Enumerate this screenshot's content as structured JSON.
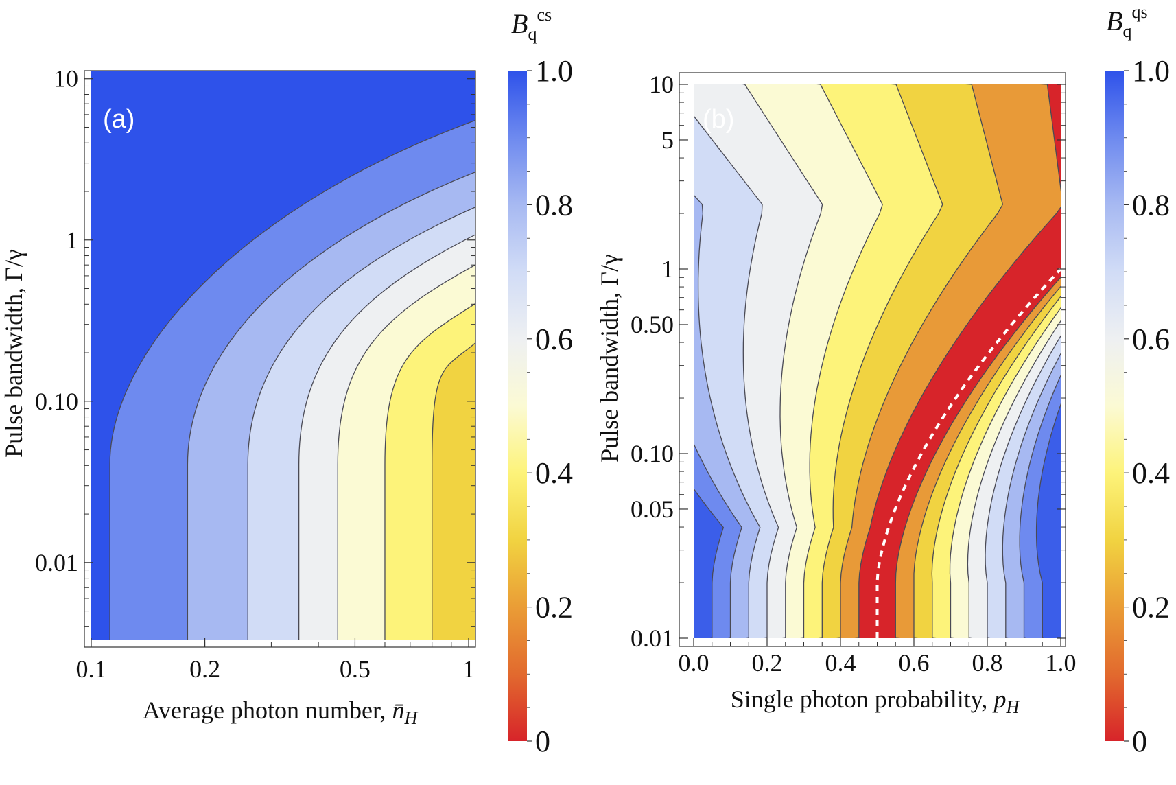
{
  "chart_data": [
    {
      "type": "heatmap",
      "subtype": "filled-contour",
      "panel_label": "(a)",
      "xlabel": "Average photon number, n̄H",
      "xlabel_main": "Average photon number,",
      "xlabel_var": "n̄",
      "xlabel_sub": "H",
      "ylabel": "Pulse bandwidth, Γ/γ",
      "x_scale": "log",
      "y_scale": "log",
      "xlim": [
        0.1,
        1
      ],
      "ylim": [
        0.0033,
        11
      ],
      "x_ticks": [
        {
          "value": 0.1,
          "label": "0.1"
        },
        {
          "value": 0.2,
          "label": "0.2"
        },
        {
          "value": 0.5,
          "label": "0.5"
        },
        {
          "value": 1,
          "label": "1"
        }
      ],
      "y_ticks": [
        {
          "value": 0.01,
          "label": "0.01"
        },
        {
          "value": 0.1,
          "label": "0.10"
        },
        {
          "value": 1,
          "label": "1"
        },
        {
          "value": 10,
          "label": "10"
        }
      ],
      "colorbar": {
        "title": "B",
        "title_sup": "cs",
        "title_sub": "q",
        "range": [
          0,
          1
        ],
        "ticks": [
          "0",
          "0.2",
          "0.4",
          "0.6",
          "0.8",
          "1.0"
        ]
      },
      "contour_step": 0.1,
      "contour_boundaries_at_low_bandwidth": [
        {
          "level": 0.9,
          "x": 0.112
        },
        {
          "level": 0.8,
          "x": 0.18
        },
        {
          "level": 0.7,
          "x": 0.26
        },
        {
          "level": 0.6,
          "x": 0.355
        },
        {
          "level": 0.5,
          "x": 0.45
        },
        {
          "level": 0.4,
          "x": 0.6
        },
        {
          "level": 0.3,
          "x": 0.8
        }
      ],
      "contour_boundaries_at_x_1": [
        {
          "level": 0.9,
          "y": 4.8
        },
        {
          "level": 0.8,
          "y": 2.3
        },
        {
          "level": 0.7,
          "y": 1.4
        },
        {
          "level": 0.6,
          "y": 0.95
        },
        {
          "level": 0.5,
          "y": 0.62
        },
        {
          "level": 0.4,
          "y": 0.36
        },
        {
          "level": 0.3,
          "y": 0.21
        }
      ],
      "min_value_region": "0.2–0.3 at n̄H ≈ 1, low bandwidth"
    },
    {
      "type": "heatmap",
      "subtype": "filled-contour",
      "panel_label": "(b)",
      "xlabel": "Single photon probability, pH",
      "xlabel_main": "Single photon probability,",
      "xlabel_var": "p",
      "xlabel_sub": "H",
      "ylabel": "Pulse bandwidth, Γ/γ",
      "x_scale": "linear",
      "y_scale": "log",
      "xlim": [
        0,
        1
      ],
      "ylim": [
        0.01,
        10
      ],
      "x_ticks": [
        {
          "value": 0,
          "label": "0.0"
        },
        {
          "value": 0.2,
          "label": "0.2"
        },
        {
          "value": 0.4,
          "label": "0.4"
        },
        {
          "value": 0.6,
          "label": "0.6"
        },
        {
          "value": 0.8,
          "label": "0.8"
        },
        {
          "value": 1,
          "label": "1.0"
        }
      ],
      "y_ticks": [
        {
          "value": 0.01,
          "label": "0.01"
        },
        {
          "value": 0.05,
          "label": "0.05"
        },
        {
          "value": 0.1,
          "label": "0.10"
        },
        {
          "value": 0.5,
          "label": "0.50"
        },
        {
          "value": 1,
          "label": "1"
        },
        {
          "value": 5,
          "label": "5"
        },
        {
          "value": 10,
          "label": "10"
        }
      ],
      "colorbar": {
        "title": "B",
        "title_sup": "qs",
        "title_sub": "q",
        "range": [
          0,
          1
        ],
        "ticks": [
          "0",
          "0.2",
          "0.4",
          "0.6",
          "0.8",
          "1.0"
        ]
      },
      "contour_step": 0.1,
      "minimum_curve": {
        "style": "dashed",
        "color": "#ffffff",
        "x_at_low_bandwidth": 0.5,
        "x_at_top": 1.0,
        "y_at_top": 1.0
      },
      "min_value": 0
    }
  ]
}
